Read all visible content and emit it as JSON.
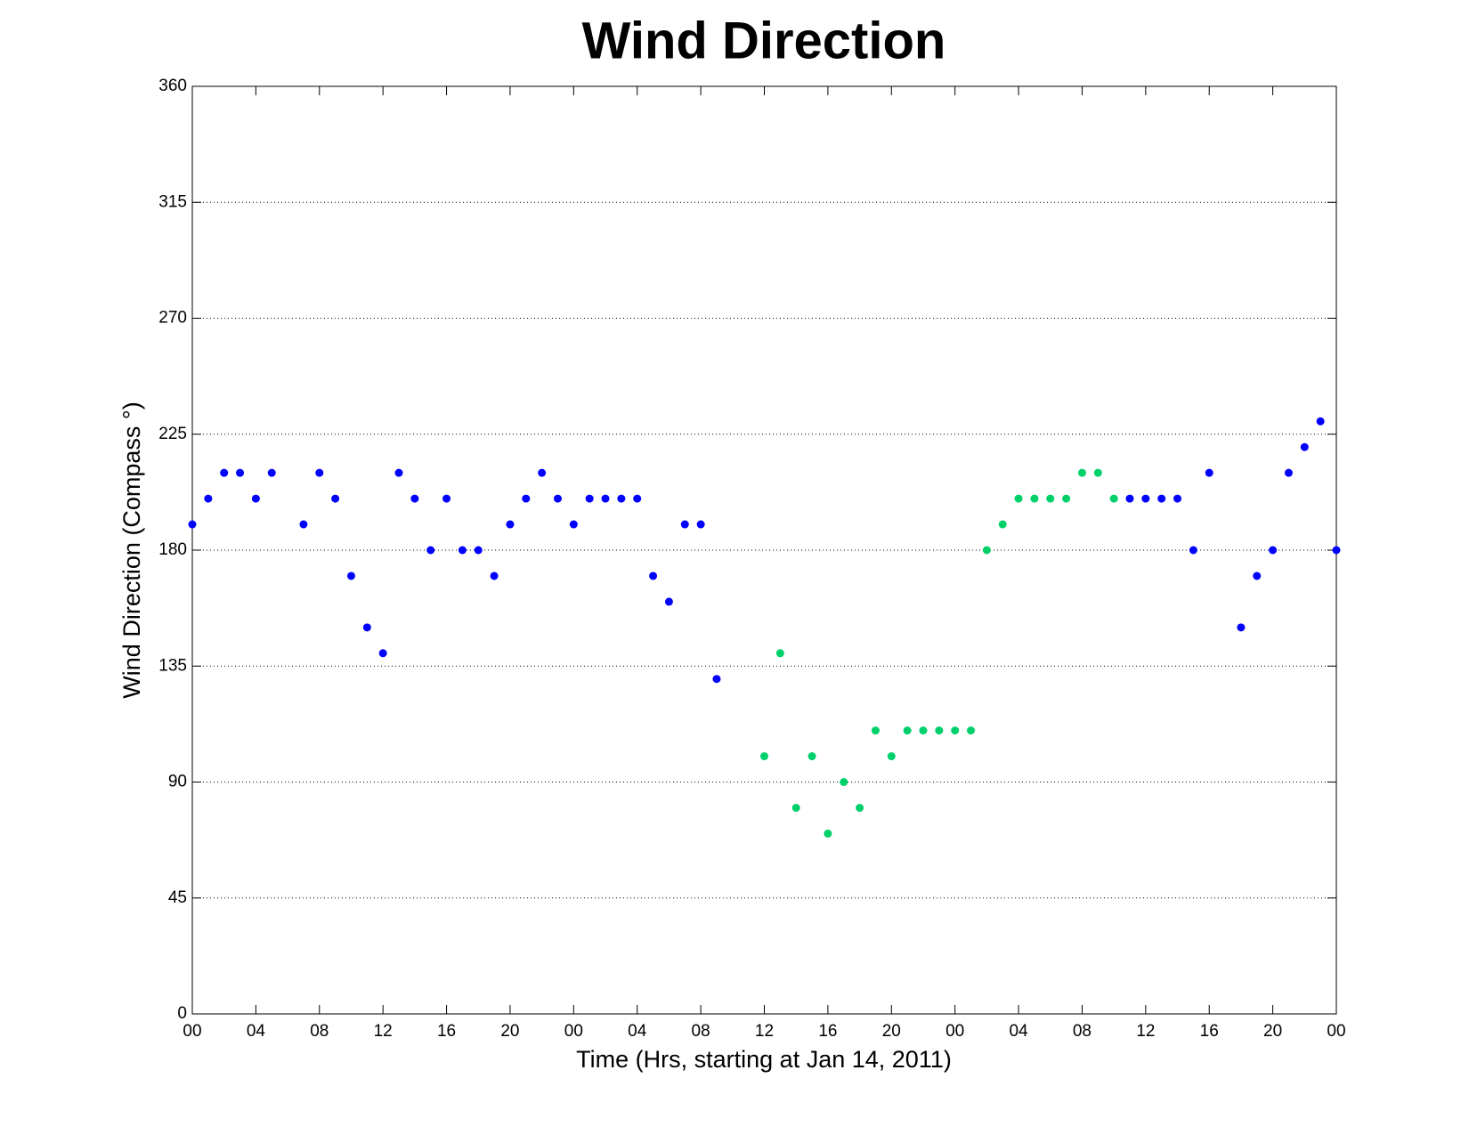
{
  "chart_data": {
    "type": "scatter",
    "title": "Wind Direction",
    "xlabel": "Time (Hrs, starting at Jan 14, 2011)",
    "ylabel": "Wind Direction (Compass  °)",
    "x": [
      0,
      1,
      2,
      3,
      4,
      5,
      6,
      7,
      8,
      9,
      10,
      11,
      12,
      13,
      14,
      15,
      16,
      17,
      18,
      19,
      20,
      21,
      22,
      23,
      24,
      25,
      26,
      27,
      28,
      29,
      30,
      31,
      32,
      33,
      34,
      35,
      36,
      37,
      38,
      39,
      40,
      41,
      42,
      43,
      44,
      45,
      46,
      47,
      48,
      49,
      50,
      51,
      52,
      53,
      54,
      55,
      56,
      57,
      58,
      59,
      60,
      61,
      62,
      63,
      64,
      65,
      66,
      67,
      68,
      69,
      70,
      71,
      72
    ],
    "series": [
      {
        "color": "#0000ff",
        "values": [
          190,
          200,
          210,
          210,
          200,
          210,
          null,
          190,
          210,
          200,
          170,
          150,
          140,
          210,
          200,
          180,
          200,
          180,
          180,
          170,
          190,
          200,
          210,
          200,
          190,
          200,
          200,
          200,
          200,
          170,
          160,
          190,
          190,
          130,
          null,
          null,
          null,
          null,
          null,
          null,
          null,
          null,
          null,
          null,
          null,
          null,
          null,
          null,
          null,
          null,
          null,
          null,
          null,
          null,
          null,
          null,
          null,
          null,
          null,
          200,
          200,
          200,
          200,
          180,
          210,
          null,
          150,
          170,
          180,
          210,
          220,
          230,
          180
        ]
      },
      {
        "color": "#00d06a",
        "values": [
          null,
          null,
          null,
          null,
          null,
          null,
          null,
          null,
          null,
          null,
          null,
          null,
          null,
          null,
          null,
          null,
          null,
          null,
          null,
          null,
          null,
          null,
          null,
          null,
          null,
          null,
          null,
          null,
          null,
          null,
          null,
          null,
          null,
          null,
          null,
          null,
          100,
          140,
          80,
          100,
          70,
          90,
          80,
          110,
          100,
          110,
          110,
          110,
          110,
          110,
          180,
          190,
          200,
          200,
          200,
          200,
          210,
          210,
          200,
          null,
          null,
          null,
          null,
          null,
          null,
          null,
          null,
          null,
          null,
          null,
          null,
          null,
          null
        ]
      }
    ],
    "xlim": [
      0,
      72
    ],
    "xticks": [
      {
        "value": 0,
        "label": "00"
      },
      {
        "value": 4,
        "label": "04"
      },
      {
        "value": 8,
        "label": "08"
      },
      {
        "value": 12,
        "label": "12"
      },
      {
        "value": 16,
        "label": "16"
      },
      {
        "value": 20,
        "label": "20"
      },
      {
        "value": 24,
        "label": "00"
      },
      {
        "value": 28,
        "label": "04"
      },
      {
        "value": 32,
        "label": "08"
      },
      {
        "value": 36,
        "label": "12"
      },
      {
        "value": 40,
        "label": "16"
      },
      {
        "value": 44,
        "label": "20"
      },
      {
        "value": 48,
        "label": "00"
      },
      {
        "value": 52,
        "label": "04"
      },
      {
        "value": 56,
        "label": "08"
      },
      {
        "value": 60,
        "label": "12"
      },
      {
        "value": 64,
        "label": "16"
      },
      {
        "value": 68,
        "label": "20"
      },
      {
        "value": 72,
        "label": "00"
      }
    ],
    "ylim": [
      0,
      360
    ],
    "yticks": [
      0,
      45,
      90,
      135,
      180,
      225,
      270,
      315,
      360
    ],
    "grid": true
  }
}
